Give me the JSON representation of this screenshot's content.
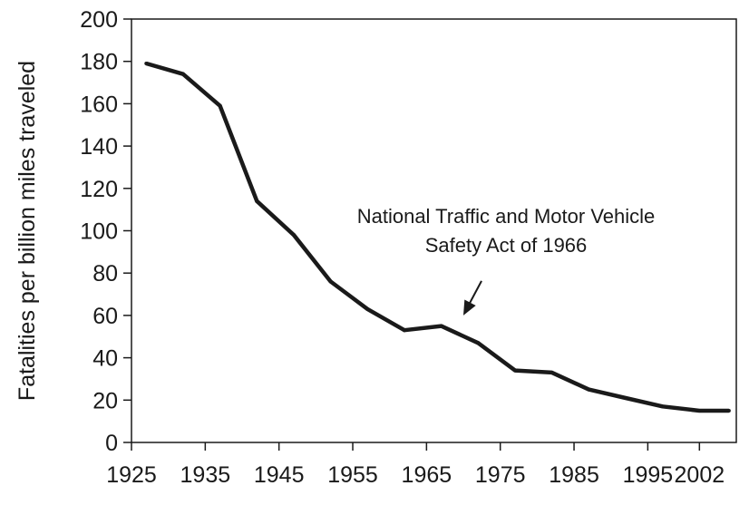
{
  "chart_data": {
    "type": "line",
    "title": "",
    "xlabel": "",
    "ylabel": "Fatalities per billion miles traveled",
    "xlim": [
      1925,
      2007
    ],
    "ylim": [
      0,
      200
    ],
    "x_ticks": [
      1925,
      1935,
      1945,
      1955,
      1965,
      1975,
      1985,
      1995,
      2002
    ],
    "y_ticks": [
      0,
      20,
      40,
      60,
      80,
      100,
      120,
      140,
      160,
      180,
      200
    ],
    "grid": false,
    "legend": "none",
    "line_color": "#1a1a1a",
    "series": [
      {
        "x": [
          1927,
          1932,
          1937,
          1942,
          1947,
          1952,
          1957,
          1962,
          1967,
          1972,
          1977,
          1982,
          1987,
          1992,
          1997,
          2002,
          2006
        ],
        "values": [
          179,
          174,
          159,
          114,
          98,
          76,
          63,
          53,
          55,
          47,
          34,
          33,
          25,
          21,
          17,
          15,
          15
        ]
      }
    ],
    "annotations": [
      {
        "lines": [
          "National Traffic and Motor Vehicle",
          "Safety Act of 1966"
        ],
        "arrow_to": {
          "x": 1970,
          "y": 60
        }
      }
    ]
  }
}
